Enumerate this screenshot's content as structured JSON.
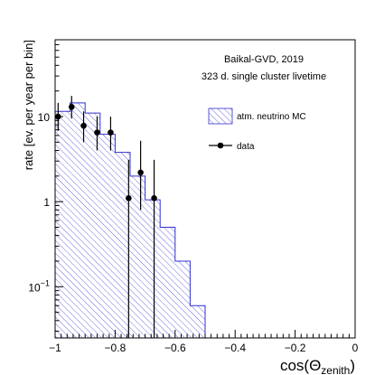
{
  "chart_data": {
    "type": "histogram",
    "ylabel": "rate [ev. per year per bin]",
    "xlabel_main": "cos(Θ",
    "xlabel_sub": "zenith",
    "xlabel_close": ")",
    "xlim": [
      -1.0,
      0.0
    ],
    "ylim": [
      0.025,
      80
    ],
    "y_scale": "log",
    "x_ticks": [
      {
        "value": -1.0,
        "label": "−1"
      },
      {
        "value": -0.8,
        "label": "−0.8"
      },
      {
        "value": -0.6,
        "label": "−0.6"
      },
      {
        "value": -0.4,
        "label": "−0.4"
      },
      {
        "value": -0.2,
        "label": "−0.2"
      },
      {
        "value": 0.0,
        "label": "0"
      }
    ],
    "y_ticks": [
      {
        "value": 0.1,
        "base": "10",
        "exp": "−1"
      },
      {
        "value": 1,
        "base": "1",
        "exp": ""
      },
      {
        "value": 10,
        "base": "10",
        "exp": ""
      }
    ],
    "annotations": [
      "Baikal-GVD, 2019",
      "323 d. single cluster livetime"
    ],
    "mc": {
      "name": "atm. neutrino MC",
      "color": "#3030d0",
      "bin_edges": [
        -1.0,
        -0.95,
        -0.9,
        -0.85,
        -0.8,
        -0.75,
        -0.7,
        -0.65,
        -0.6,
        -0.55,
        -0.5
      ],
      "values": [
        11.5,
        14.5,
        11.0,
        6.2,
        3.8,
        2.0,
        1.05,
        0.5,
        0.2,
        0.06
      ]
    },
    "data": {
      "name": "data",
      "color": "#000000",
      "points": [
        {
          "x": -0.99,
          "y": 10.0,
          "lo": 6.8,
          "hi": 14.5
        },
        {
          "x": -0.945,
          "y": 13.0,
          "lo": 9.5,
          "hi": 17.5
        },
        {
          "x": -0.905,
          "y": 7.8,
          "lo": 5.0,
          "hi": 11.5
        },
        {
          "x": -0.86,
          "y": 6.5,
          "lo": 4.0,
          "hi": 10.0
        },
        {
          "x": -0.815,
          "y": 6.5,
          "lo": 4.0,
          "hi": 10.0
        },
        {
          "x": -0.755,
          "y": 1.1,
          "lo": 0.025,
          "hi": 3.1
        },
        {
          "x": -0.715,
          "y": 2.2,
          "lo": 0.8,
          "hi": 5.2
        },
        {
          "x": -0.67,
          "y": 1.1,
          "lo": 0.025,
          "hi": 3.1
        }
      ]
    }
  }
}
